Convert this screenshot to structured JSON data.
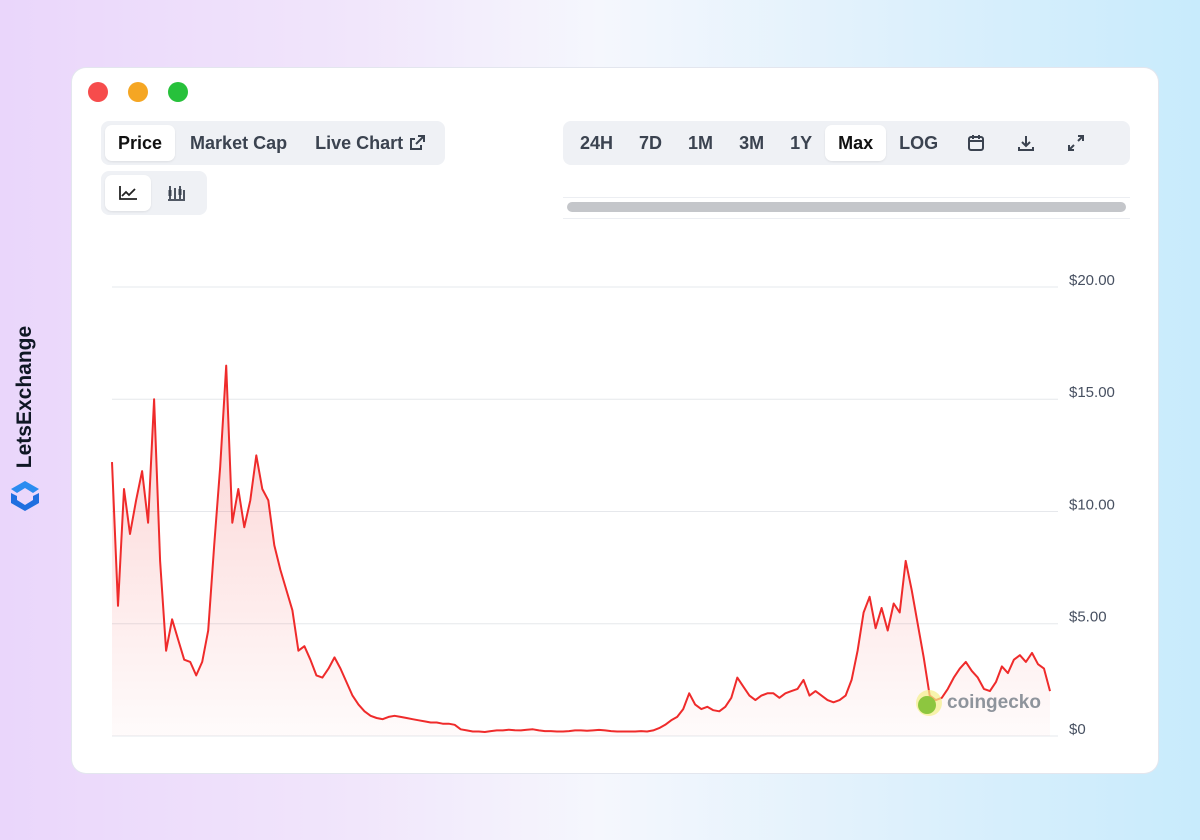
{
  "brand": "LetsExchange",
  "tabs": [
    "Price",
    "Market Cap",
    "Live Chart"
  ],
  "ranges": [
    "24H",
    "7D",
    "1M",
    "3M",
    "1Y",
    "Max",
    "LOG"
  ],
  "watermark": "coingecko",
  "chart_data": {
    "type": "line",
    "color": "#ef2b2b",
    "values": [
      12.2,
      5.8,
      11,
      9,
      10.5,
      11.8,
      9.5,
      15,
      7.8,
      3.8,
      5.2,
      4.3,
      3.4,
      3.3,
      2.7,
      3.3,
      4.7,
      8.5,
      12,
      16.5,
      9.5,
      11,
      9.3,
      10.5,
      12.5,
      11,
      10.5,
      8.5,
      7.4,
      6.5,
      5.6,
      3.8,
      4,
      3.4,
      2.7,
      2.6,
      3,
      3.5,
      3,
      2.4,
      1.8,
      1.4,
      1.1,
      0.9,
      0.8,
      0.75,
      0.85,
      0.9,
      0.85,
      0.8,
      0.75,
      0.7,
      0.65,
      0.6,
      0.6,
      0.55,
      0.55,
      0.5,
      0.3,
      0.25,
      0.2,
      0.2,
      0.18,
      0.22,
      0.25,
      0.25,
      0.28,
      0.26,
      0.25,
      0.28,
      0.3,
      0.25,
      0.22,
      0.22,
      0.2,
      0.2,
      0.22,
      0.25,
      0.25,
      0.23,
      0.25,
      0.27,
      0.25,
      0.22,
      0.2,
      0.2,
      0.2,
      0.2,
      0.22,
      0.2,
      0.25,
      0.35,
      0.5,
      0.7,
      0.85,
      1.2,
      1.9,
      1.4,
      1.2,
      1.3,
      1.15,
      1.1,
      1.3,
      1.7,
      2.6,
      2.2,
      1.8,
      1.6,
      1.8,
      1.9,
      1.9,
      1.7,
      1.9,
      2.0,
      2.1,
      2.5,
      1.8,
      2.0,
      1.8,
      1.6,
      1.5,
      1.6,
      1.8,
      2.5,
      3.8,
      5.5,
      6.2,
      4.8,
      5.7,
      4.7,
      5.9,
      5.5,
      7.8,
      6.5,
      5,
      3.5,
      1.8,
      1.6,
      1.7,
      2.1,
      2.6,
      3.0,
      3.3,
      2.9,
      2.6,
      2.1,
      2.0,
      2.4,
      3.1,
      2.8,
      3.4,
      3.6,
      3.3,
      3.7,
      3.2,
      3.0,
      2.0
    ],
    "ylim": [
      0,
      20
    ],
    "yticks": [
      {
        "value": 0,
        "label": "$0"
      },
      {
        "value": 5,
        "label": "$5.00"
      },
      {
        "value": 10,
        "label": "$10.00"
      },
      {
        "value": 15,
        "label": "$15.00"
      },
      {
        "value": 20,
        "label": "$20.00"
      }
    ],
    "grid": true
  }
}
